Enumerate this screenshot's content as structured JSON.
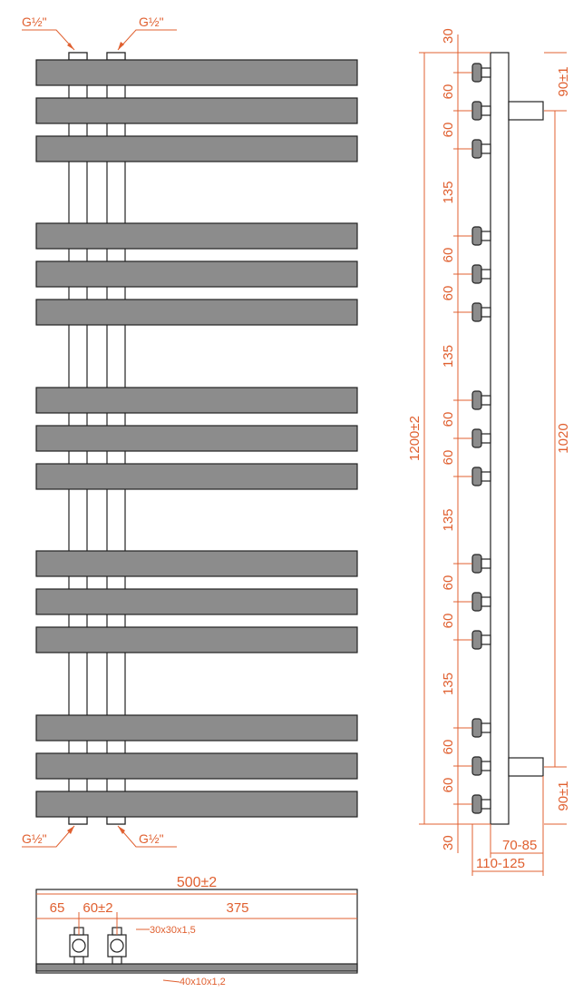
{
  "front_view": {
    "connection_top_left": "G½\"",
    "connection_top_right": "G½\"",
    "connection_bottom_left": "G½\"",
    "connection_bottom_right": "G½\""
  },
  "side_view": {
    "top_margin": "30",
    "bottom_margin": "30",
    "gap_60": "60",
    "gap_135": "135",
    "total_height": "1200±2",
    "connection_spacing": "1020",
    "offset_top": "90±1",
    "offset_bottom": "90±1",
    "depth_inner": "70-85",
    "depth_outer": "110-125"
  },
  "bottom_view": {
    "total_width": "500±2",
    "left_offset": "65",
    "pipe_spacing": "60±2",
    "right_span": "375",
    "pipe_profile": "30x30x1,5",
    "bar_profile": "40x10x1,2"
  },
  "colors": {
    "dimension": "#e06030",
    "bar_fill": "#8c8c8c",
    "outline": "#222222"
  }
}
